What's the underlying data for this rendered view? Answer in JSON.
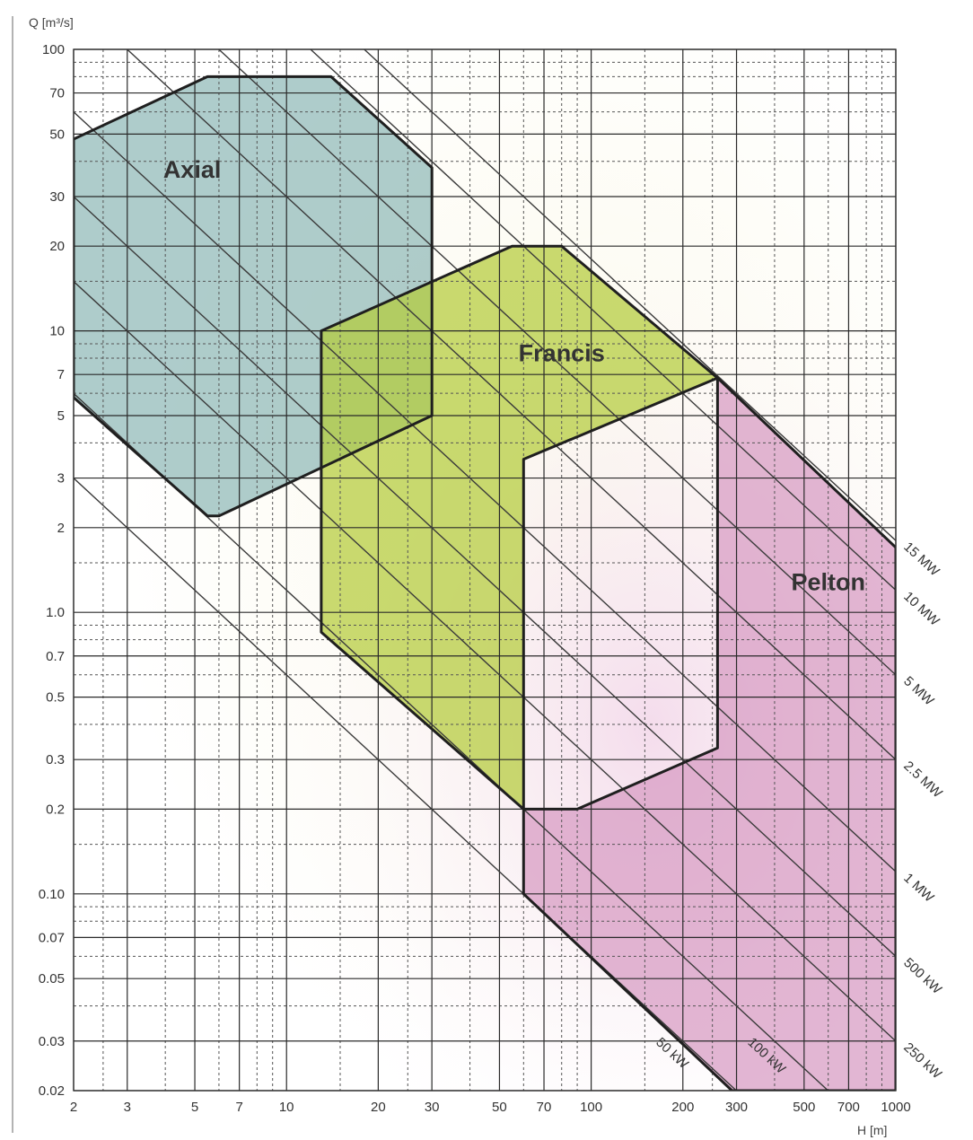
{
  "chart_data": {
    "type": "area",
    "title": "",
    "xlabel": "H [m]",
    "ylabel": "Q [m³/s]",
    "x_scale": "log",
    "y_scale": "log",
    "xlim": [
      2,
      1000
    ],
    "ylim": [
      0.02,
      100
    ],
    "grid": true,
    "x_ticks": [
      {
        "value": 2,
        "label": "2"
      },
      {
        "value": 3,
        "label": "3"
      },
      {
        "value": 5,
        "label": "5"
      },
      {
        "value": 7,
        "label": "7"
      },
      {
        "value": 10,
        "label": "10"
      },
      {
        "value": 20,
        "label": "20"
      },
      {
        "value": 30,
        "label": "30"
      },
      {
        "value": 50,
        "label": "50"
      },
      {
        "value": 70,
        "label": "70"
      },
      {
        "value": 100,
        "label": "100"
      },
      {
        "value": 200,
        "label": "200"
      },
      {
        "value": 300,
        "label": "300"
      },
      {
        "value": 500,
        "label": "500"
      },
      {
        "value": 700,
        "label": "700"
      },
      {
        "value": 1000,
        "label": "1000"
      }
    ],
    "y_ticks": [
      {
        "value": 100,
        "label": "100"
      },
      {
        "value": 70,
        "label": "70"
      },
      {
        "value": 50,
        "label": "50"
      },
      {
        "value": 30,
        "label": "30"
      },
      {
        "value": 20,
        "label": "20"
      },
      {
        "value": 10,
        "label": "10"
      },
      {
        "value": 7,
        "label": "7"
      },
      {
        "value": 5,
        "label": "5"
      },
      {
        "value": 3,
        "label": "3"
      },
      {
        "value": 2,
        "label": "2"
      },
      {
        "value": 1,
        "label": "1.0"
      },
      {
        "value": 0.7,
        "label": "0.7"
      },
      {
        "value": 0.5,
        "label": "0.5"
      },
      {
        "value": 0.3,
        "label": "0.3"
      },
      {
        "value": 0.2,
        "label": "0.2"
      },
      {
        "value": 0.1,
        "label": "0.10"
      },
      {
        "value": 0.07,
        "label": "0.07"
      },
      {
        "value": 0.05,
        "label": "0.05"
      },
      {
        "value": 0.03,
        "label": "0.03"
      },
      {
        "value": 0.02,
        "label": "0.02"
      }
    ],
    "regions": [
      {
        "name": "Axial",
        "color": "#8fb9b7",
        "label_at": [
          4.9,
          35
        ],
        "points": [
          [
            2,
            48
          ],
          [
            5.5,
            80
          ],
          [
            14,
            80
          ],
          [
            30,
            38
          ],
          [
            30,
            5
          ],
          [
            6,
            2.2
          ],
          [
            5.5,
            2.2
          ],
          [
            2,
            5.8
          ]
        ]
      },
      {
        "name": "Francis",
        "color": "#b4cc3a",
        "label_at": [
          80,
          7.8
        ],
        "points": [
          [
            13,
            10
          ],
          [
            55,
            20
          ],
          [
            80,
            20
          ],
          [
            260,
            6.8
          ],
          [
            60,
            3.5
          ],
          [
            60,
            0.2
          ],
          [
            13,
            0.85
          ]
        ]
      },
      {
        "name": "Pelton",
        "color": "#d79ac2",
        "label_at": [
          600,
          1.2
        ],
        "points": [
          [
            260,
            6.8
          ],
          [
            1000,
            1.7
          ],
          [
            1000,
            0.02
          ],
          [
            290,
            0.02
          ],
          [
            60,
            0.1
          ],
          [
            60,
            0.2
          ],
          [
            90,
            0.2
          ],
          [
            260,
            0.33
          ]
        ]
      }
    ],
    "power_lines": [
      {
        "label": "15 MW",
        "P_kW": 15000
      },
      {
        "label": "10 MW",
        "P_kW": 10000
      },
      {
        "label": "5 MW",
        "P_kW": 5000
      },
      {
        "label": "2.5 MW",
        "P_kW": 2500
      },
      {
        "label": "1 MW",
        "P_kW": 1000
      },
      {
        "label": "500 kW",
        "P_kW": 500
      },
      {
        "label": "250 kW",
        "P_kW": 250
      },
      {
        "label": "100 kW",
        "P_kW": 100
      },
      {
        "label": "50 kW",
        "P_kW": 50
      }
    ]
  }
}
